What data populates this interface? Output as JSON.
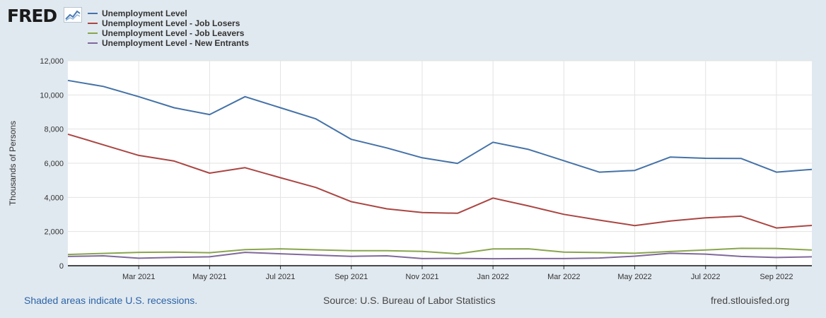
{
  "brand": {
    "logo_text": "FRED",
    "logo_icon": "chart-line-icon"
  },
  "footer": {
    "note": "Shaded areas indicate U.S. recessions.",
    "source": "Source: U.S. Bureau of Labor Statistics",
    "site": "fred.stlouisfed.org"
  },
  "chart_data": {
    "type": "line",
    "title": "",
    "ylabel": "Thousands of Persons",
    "xlabel": "",
    "ylim": [
      0,
      12000
    ],
    "yticks": [
      0,
      2000,
      4000,
      6000,
      8000,
      10000,
      12000
    ],
    "ytick_labels": [
      "0",
      "2,000",
      "4,000",
      "6,000",
      "8,000",
      "10,000",
      "12,000"
    ],
    "x": [
      "2021-01",
      "2021-02",
      "2021-03",
      "2021-04",
      "2021-05",
      "2021-06",
      "2021-07",
      "2021-08",
      "2021-09",
      "2021-10",
      "2021-11",
      "2021-12",
      "2022-01",
      "2022-02",
      "2022-03",
      "2022-04",
      "2022-05",
      "2022-06",
      "2022-07",
      "2022-08",
      "2022-09",
      "2022-10"
    ],
    "xticks": [
      {
        "at": "2021-03",
        "label": "Mar 2021"
      },
      {
        "at": "2021-05",
        "label": "May 2021"
      },
      {
        "at": "2021-07",
        "label": "Jul 2021"
      },
      {
        "at": "2021-09",
        "label": "Sep 2021"
      },
      {
        "at": "2021-11",
        "label": "Nov 2021"
      },
      {
        "at": "2022-01",
        "label": "Jan 2022"
      },
      {
        "at": "2022-03",
        "label": "Mar 2022"
      },
      {
        "at": "2022-05",
        "label": "May 2022"
      },
      {
        "at": "2022-07",
        "label": "Jul 2022"
      },
      {
        "at": "2022-09",
        "label": "Sep 2022"
      }
    ],
    "grid": true,
    "legend_position": "top-left",
    "series": [
      {
        "name": "Unemployment Level",
        "color": "#4572a7",
        "values": [
          10850,
          10500,
          9900,
          9250,
          8850,
          9900,
          9250,
          8600,
          7400,
          6900,
          6320,
          5990,
          7230,
          6810,
          6150,
          5480,
          5580,
          6360,
          6290,
          6280,
          5480,
          5640
        ]
      },
      {
        "name": "Unemployment Level - Job Losers",
        "color": "#aa4643",
        "values": [
          7700,
          7080,
          6460,
          6130,
          5420,
          5740,
          5150,
          4580,
          3750,
          3330,
          3110,
          3070,
          3960,
          3500,
          3010,
          2670,
          2350,
          2620,
          2800,
          2900,
          2210,
          2360
        ]
      },
      {
        "name": "Unemployment Level - Job Leavers",
        "color": "#89a54e",
        "values": [
          660,
          720,
          780,
          800,
          760,
          940,
          990,
          930,
          880,
          880,
          840,
          700,
          980,
          990,
          800,
          770,
          730,
          830,
          920,
          1020,
          1010,
          920
        ]
      },
      {
        "name": "Unemployment Level - New Entrants",
        "color": "#80699b",
        "values": [
          540,
          580,
          440,
          490,
          520,
          780,
          700,
          620,
          550,
          580,
          420,
          430,
          410,
          420,
          420,
          450,
          560,
          730,
          680,
          540,
          480,
          520
        ]
      }
    ]
  }
}
